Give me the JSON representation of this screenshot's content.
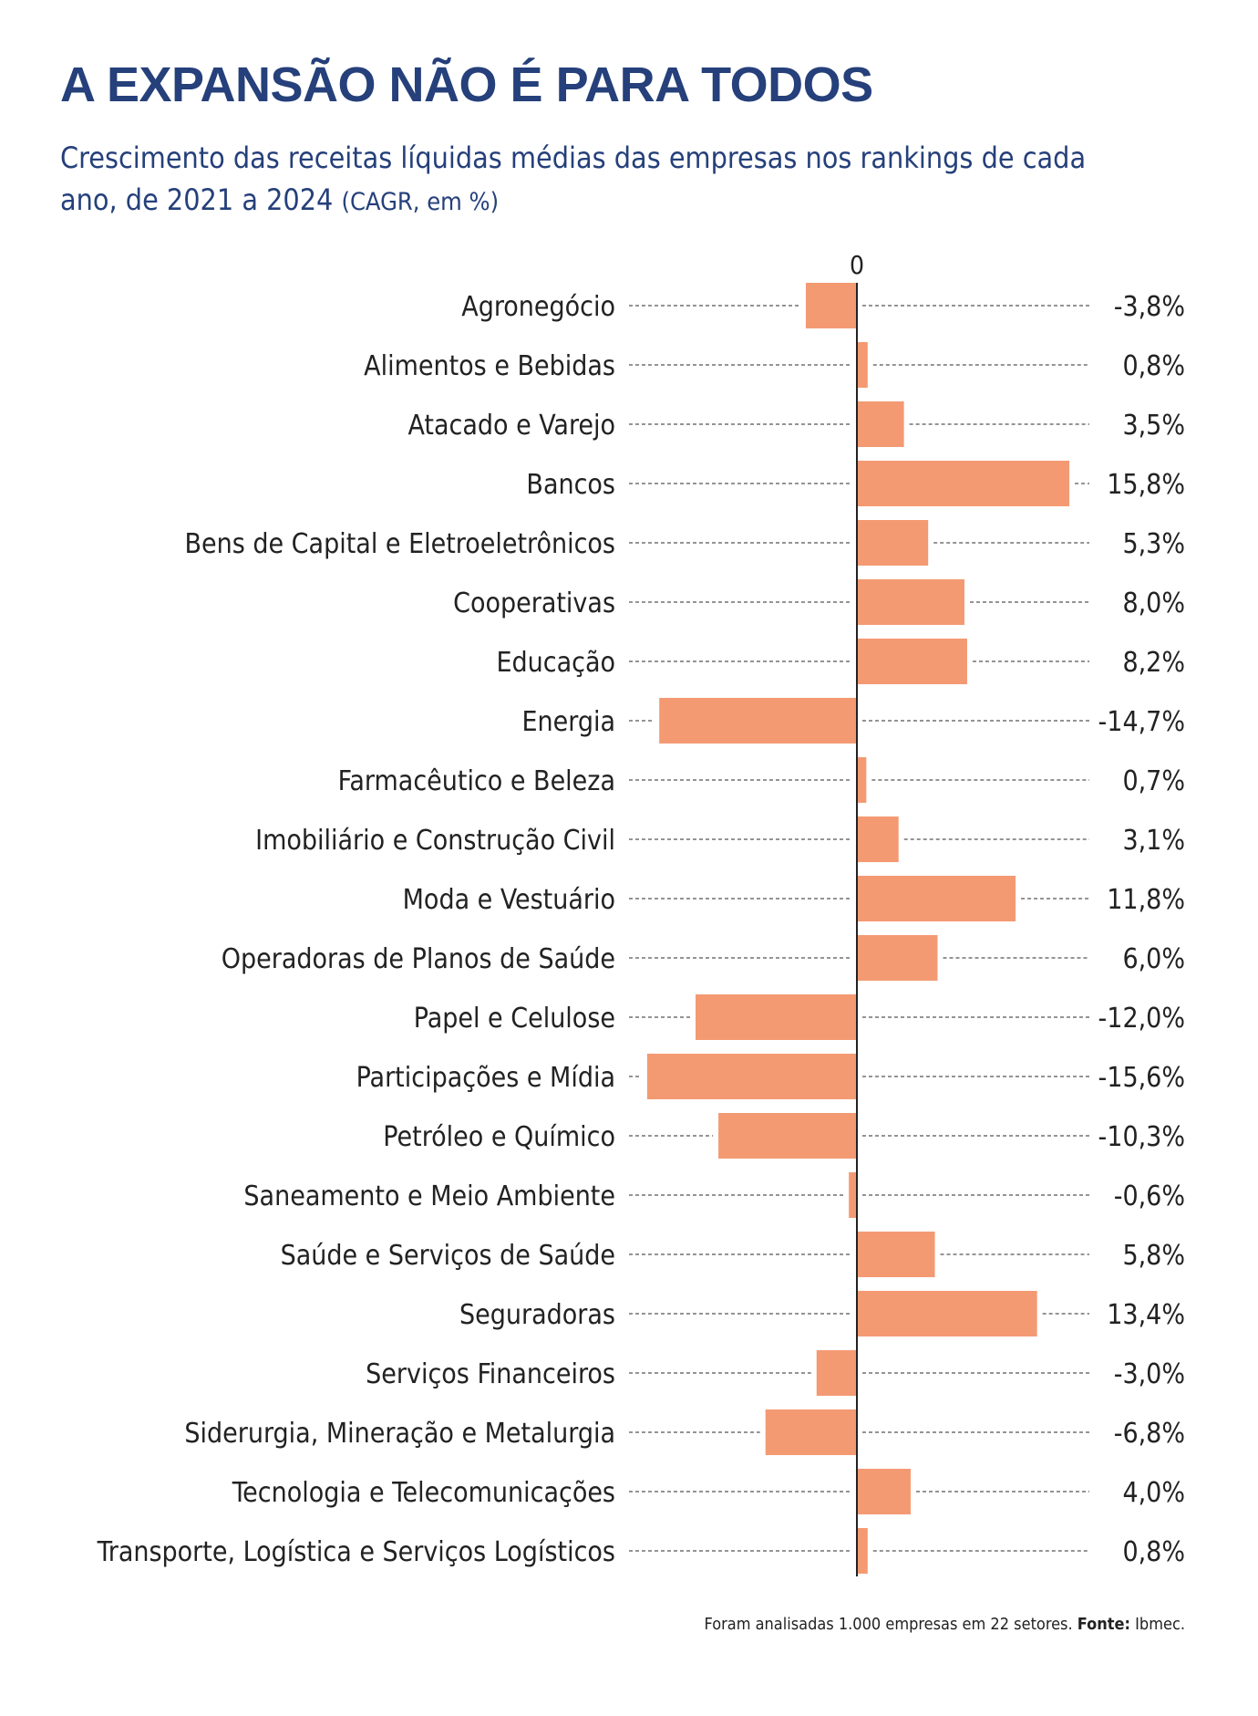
{
  "header": {
    "title": "A EXPANSÃO NÃO É PARA TODOS",
    "subtitle": "Crescimento das receitas líquidas médias das empresas nos rankings de cada ano, de 2021 a 2024",
    "subtitle_unit": "(CAGR, em %)"
  },
  "colors": {
    "title": "#25407a",
    "bar": "#f49a73",
    "axis": "#222222",
    "leader": "#555555"
  },
  "footnote": {
    "text": "Foram analisadas 1.000 empresas em 22 setores.",
    "source_label": "Fonte:",
    "source": "Ibmec."
  },
  "chart_data": {
    "type": "bar",
    "orientation": "horizontal",
    "zero_label": "0",
    "grid": false,
    "categories": [
      "Agronegócio",
      "Alimentos e Bebidas",
      "Atacado e Varejo",
      "Bancos",
      "Bens de Capital e Eletroeletrônicos",
      "Cooperativas",
      "Educação",
      "Energia",
      "Farmacêutico e Beleza",
      "Imobiliário e Construção Civil",
      "Moda e Vestuário",
      "Operadoras de Planos de Saúde",
      "Papel e Celulose",
      "Participações e Mídia",
      "Petróleo e Químico",
      "Saneamento e Meio Ambiente",
      "Saúde e Serviços de Saúde",
      "Seguradoras",
      "Serviços Financeiros",
      "Siderurgia, Mineração e Metalurgia",
      "Tecnologia e Telecomunicações",
      "Transporte, Logística e Serviços Logísticos"
    ],
    "values": [
      -3.8,
      0.8,
      3.5,
      15.8,
      5.3,
      8.0,
      8.2,
      -14.7,
      0.7,
      3.1,
      11.8,
      6.0,
      -12.0,
      -15.6,
      -10.3,
      -0.6,
      5.8,
      13.4,
      -3.0,
      -6.8,
      4.0,
      0.8
    ],
    "value_labels": [
      "-3,8%",
      "0,8%",
      "3,5%",
      "15,8%",
      "5,3%",
      "8,0%",
      "8,2%",
      "-14,7%",
      "0,7%",
      "3,1%",
      "11,8%",
      "6,0%",
      "-12,0%",
      "-15,6%",
      "-10,3%",
      "-0,6%",
      "5,8%",
      "13,4%",
      "-3,0%",
      "-6,8%",
      "4,0%",
      "0,8%"
    ],
    "xlim": [
      -15.6,
      15.8
    ]
  }
}
